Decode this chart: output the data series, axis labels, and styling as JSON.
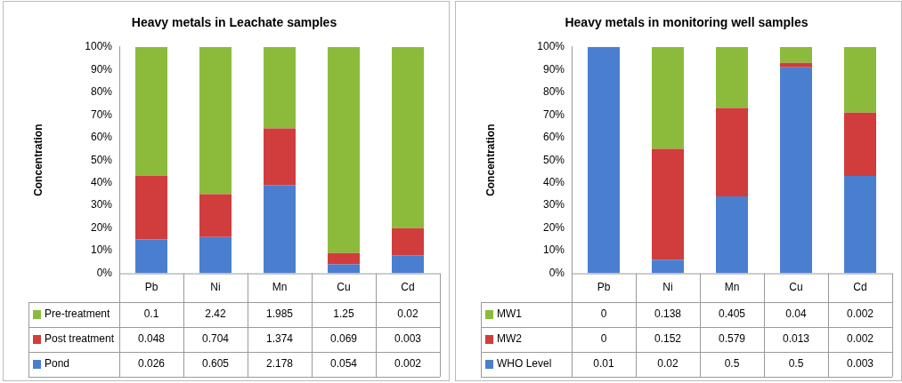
{
  "chart_data": [
    {
      "type": "bar",
      "title": "Heavy metals in Leachate samples",
      "ylabel": "Concentration",
      "stacked": true,
      "legend": "bottom",
      "grid": false,
      "categories": [
        "Pb",
        "Ni",
        "Mn",
        "Cu",
        "Cd"
      ],
      "ylim": [
        0,
        100
      ],
      "yticks": [
        {
          "value": 0,
          "label": "0%"
        },
        {
          "value": 10,
          "label": "10%"
        },
        {
          "value": 20,
          "label": "20%"
        },
        {
          "value": 30,
          "label": "30%"
        },
        {
          "value": 40,
          "label": "40%"
        },
        {
          "value": 50,
          "label": "50%"
        },
        {
          "value": 60,
          "label": "60%"
        },
        {
          "value": 70,
          "label": "70%"
        },
        {
          "value": 80,
          "label": "80%"
        },
        {
          "value": 90,
          "label": "90%"
        },
        {
          "value": 100,
          "label": "100%"
        }
      ],
      "series": [
        {
          "name": "Pond",
          "color": "#4a7fd0",
          "values": [
            15,
            16,
            39,
            4,
            8
          ]
        },
        {
          "name": "Post treatment",
          "color": "#d13c3c",
          "values": [
            28,
            19,
            25,
            5,
            12
          ]
        },
        {
          "name": "Pre-treatment",
          "color": "#8cbb3c",
          "values": [
            57,
            65,
            36,
            91,
            80
          ]
        }
      ],
      "annotations": [
        "0.1",
        "2.42",
        "1.985",
        "1.25",
        "0.02",
        "0.048",
        "0.704",
        "1.374",
        "0.069",
        "0.003",
        "0.026",
        "0.605",
        "2.178",
        "0.054",
        "0.002"
      ]
    },
    {
      "type": "bar",
      "title": "Heavy metals in monitoring well samples",
      "ylabel": "Concentration",
      "stacked": true,
      "legend": "bottom",
      "grid": false,
      "categories": [
        "Pb",
        "Ni",
        "Mn",
        "Cu",
        "Cd"
      ],
      "ylim": [
        0,
        100
      ],
      "yticks": [
        {
          "value": 0,
          "label": "0%"
        },
        {
          "value": 10,
          "label": "10%"
        },
        {
          "value": 20,
          "label": "20%"
        },
        {
          "value": 30,
          "label": "30%"
        },
        {
          "value": 40,
          "label": "40%"
        },
        {
          "value": 50,
          "label": "50%"
        },
        {
          "value": 60,
          "label": "60%"
        },
        {
          "value": 70,
          "label": "70%"
        },
        {
          "value": 80,
          "label": "80%"
        },
        {
          "value": 90,
          "label": "90%"
        },
        {
          "value": 100,
          "label": "100%"
        }
      ],
      "series": [
        {
          "name": "WHO Level",
          "color": "#4a7fd0",
          "values": [
            100,
            6,
            34,
            91,
            43
          ]
        },
        {
          "name": "MW2",
          "color": "#d13c3c",
          "values": [
            0,
            49,
            39,
            2,
            28
          ]
        },
        {
          "name": "MW1",
          "color": "#8cbb3c",
          "values": [
            0,
            45,
            27,
            7,
            29
          ]
        }
      ],
      "annotations": [
        "0",
        "0.138",
        "0.405",
        "0.04",
        "0.002",
        "0",
        "0.152",
        "0.579",
        "0.013",
        "0.002",
        "0.01",
        "0.02",
        "0.5",
        "0.5",
        "0.003"
      ]
    }
  ]
}
